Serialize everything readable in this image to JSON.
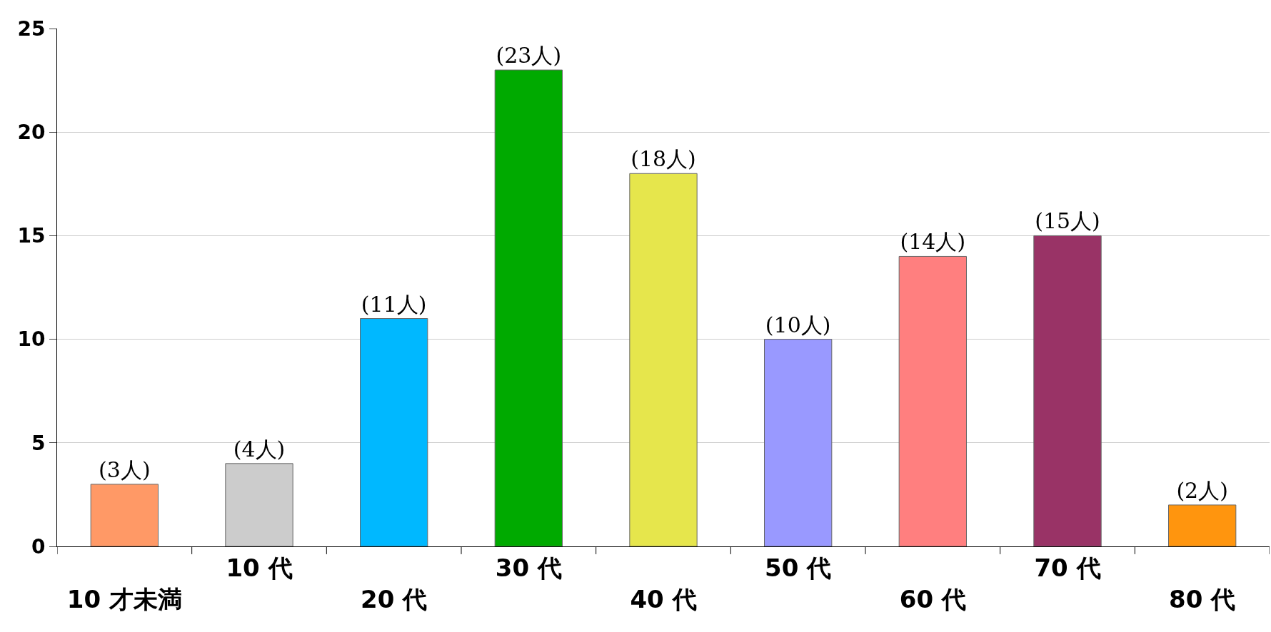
{
  "chart_data": {
    "type": "bar",
    "categories": [
      "10 才未満",
      "10 代",
      "20 代",
      "30 代",
      "40 代",
      "50 代",
      "60 代",
      "70 代",
      "80 代"
    ],
    "values": [
      3,
      4,
      11,
      23,
      18,
      10,
      14,
      15,
      2
    ],
    "colors": [
      "#ff9966",
      "#cccccc",
      "#00b8ff",
      "#00aa00",
      "#e6e64c",
      "#9999ff",
      "#ff7f7f",
      "#993366",
      "#ff950e"
    ],
    "value_labels": [
      "(3人)",
      "(4人)",
      "(11人)",
      "(23人)",
      "(18人)",
      "(10人)",
      "(14人)",
      "(15人)",
      "(2人)"
    ],
    "ylim": [
      0,
      25
    ],
    "yticks": [
      0,
      5,
      10,
      15,
      20,
      25
    ],
    "grid": "y"
  }
}
